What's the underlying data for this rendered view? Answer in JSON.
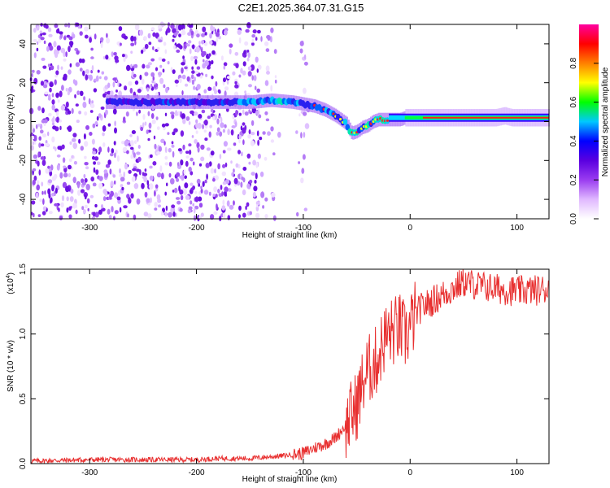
{
  "title": "C2E1.2025.364.07.31.G15",
  "chart_data": [
    {
      "type": "heatmap",
      "title": "C2E1.2025.364.07.31.G15",
      "xlabel": "Height of straight line (km)",
      "ylabel": "Frequency (Hz)",
      "xlim": [
        -355,
        130
      ],
      "ylim": [
        -50,
        50
      ],
      "xticks": [
        -300,
        -200,
        -100,
        0,
        100
      ],
      "xtick_labels": [
        "-300",
        "-200",
        "-100",
        "0",
        "100"
      ],
      "yticks": [
        -40,
        -20,
        0,
        20,
        40
      ],
      "ytick_labels": [
        "-40",
        "-20",
        "0",
        "20",
        "40"
      ],
      "colorbar": {
        "label": "Normalized spectral amplitude",
        "range": [
          0.0,
          1.0
        ],
        "ticks": [
          0.0,
          0.2,
          0.4,
          0.6,
          0.8
        ],
        "tick_labels": [
          "0.0",
          "0.2",
          "0.4",
          "0.6",
          "0.8"
        ],
        "colors": [
          "#ffffff",
          "#e0b8ff",
          "#9a3cf0",
          "#5a00e0",
          "#0000ff",
          "#00c8ff",
          "#00ff00",
          "#ffff00",
          "#ff8000",
          "#ff0000",
          "#ff00a0"
        ]
      },
      "ridge_x": [
        -280,
        -240,
        -200,
        -180,
        -150,
        -130,
        -110,
        -90,
        -80,
        -70,
        -60,
        -55,
        -50,
        -45,
        -40,
        -35,
        -30,
        -25,
        -20,
        -15,
        -10,
        -5,
        0,
        20,
        40,
        60,
        80,
        88,
        95,
        110,
        130
      ],
      "ridge_freq": [
        10,
        10,
        10,
        10,
        10,
        11,
        10,
        8,
        6,
        3,
        -1,
        -6,
        -5,
        -3,
        -2,
        0,
        1,
        1,
        1,
        1,
        1,
        2,
        2,
        2,
        2,
        2,
        2,
        3,
        2,
        2,
        2
      ]
    },
    {
      "type": "line",
      "xlabel": "Height of straight line (km)",
      "ylabel": "SNR (10 * v/v)",
      "multiplier": "(x10",
      "multiplier_exp": "4",
      "multiplier_close": ")",
      "xlim": [
        -355,
        130
      ],
      "ylim": [
        0.0,
        1.5
      ],
      "xticks": [
        -300,
        -200,
        -100,
        0,
        100
      ],
      "xtick_labels": [
        "-300",
        "-200",
        "-100",
        "0",
        "100"
      ],
      "yticks": [
        0.0,
        0.5,
        1.0,
        1.5
      ],
      "ytick_labels": [
        "0.0",
        "0.5",
        "1.0",
        "1.5"
      ],
      "series": [
        {
          "name": "SNR",
          "color": "#e83030",
          "x": [
            -355,
            -300,
            -250,
            -200,
            -180,
            -150,
            -120,
            -100,
            -90,
            -80,
            -70,
            -60,
            -50,
            -45,
            -40,
            -35,
            -30,
            -25,
            -20,
            -15,
            -10,
            -5,
            0,
            5,
            10,
            20,
            30,
            40,
            50,
            60,
            80,
            100,
            120,
            130
          ],
          "y": [
            0.02,
            0.03,
            0.03,
            0.03,
            0.04,
            0.04,
            0.06,
            0.08,
            0.12,
            0.15,
            0.2,
            0.3,
            0.45,
            0.6,
            0.72,
            0.75,
            0.82,
            0.95,
            1.0,
            1.02,
            1.05,
            0.98,
            1.05,
            1.15,
            1.2,
            1.25,
            1.3,
            1.35,
            1.4,
            1.38,
            1.35,
            1.33,
            1.34,
            1.35
          ]
        }
      ]
    }
  ]
}
